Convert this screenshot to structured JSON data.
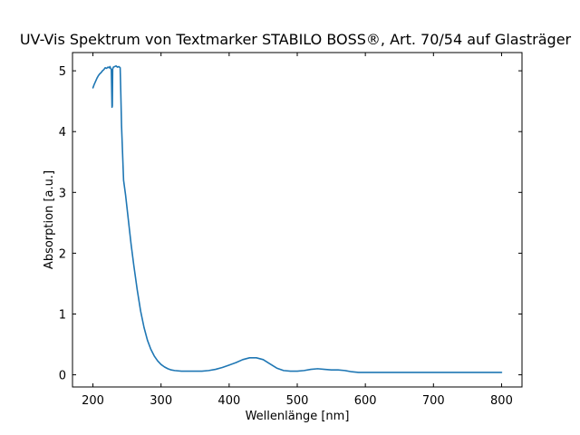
{
  "chart_data": {
    "type": "line",
    "title": "UV-Vis Spektrum von Textmarker STABILO BOSS®, Art. 70/54 auf Glasträger",
    "xlabel": "Wellenlänge [nm]",
    "ylabel": "Absorption [a.u.]",
    "xlim": [
      170,
      830
    ],
    "ylim": [
      -0.2,
      5.3
    ],
    "xticks": [
      200,
      300,
      400,
      500,
      600,
      700,
      800
    ],
    "yticks": [
      0,
      1,
      2,
      3,
      4,
      5
    ],
    "grid": false,
    "color": "#1f77b4",
    "series": [
      {
        "x": [
          200,
          202,
          204,
          206,
          208,
          210,
          212,
          214,
          216,
          218,
          220,
          222,
          224,
          225,
          226,
          227,
          228,
          228.5,
          229,
          230,
          232,
          234,
          236,
          238,
          240,
          241,
          242,
          243,
          245,
          248,
          252,
          256,
          260,
          265,
          270,
          275,
          280,
          285,
          290,
          295,
          300,
          305,
          310,
          315,
          320,
          330,
          340,
          350,
          360,
          370,
          380,
          390,
          400,
          410,
          420,
          430,
          440,
          450,
          460,
          470,
          480,
          490,
          500,
          510,
          520,
          530,
          540,
          550,
          560,
          570,
          580,
          590,
          600,
          620,
          650,
          700,
          750,
          800
        ],
        "y": [
          4.72,
          4.78,
          4.83,
          4.88,
          4.92,
          4.95,
          4.97,
          5.0,
          5.02,
          5.05,
          5.04,
          5.06,
          5.05,
          5.07,
          5.04,
          5.02,
          4.4,
          4.42,
          5.03,
          5.06,
          5.07,
          5.08,
          5.06,
          5.07,
          5.05,
          4.6,
          4.1,
          3.8,
          3.2,
          2.95,
          2.55,
          2.15,
          1.8,
          1.4,
          1.05,
          0.78,
          0.57,
          0.42,
          0.31,
          0.23,
          0.17,
          0.13,
          0.1,
          0.08,
          0.07,
          0.06,
          0.06,
          0.06,
          0.06,
          0.07,
          0.09,
          0.12,
          0.16,
          0.2,
          0.25,
          0.28,
          0.28,
          0.25,
          0.18,
          0.11,
          0.07,
          0.06,
          0.06,
          0.07,
          0.09,
          0.1,
          0.09,
          0.08,
          0.08,
          0.07,
          0.05,
          0.04,
          0.04,
          0.04,
          0.04,
          0.04,
          0.04,
          0.04
        ]
      }
    ]
  }
}
